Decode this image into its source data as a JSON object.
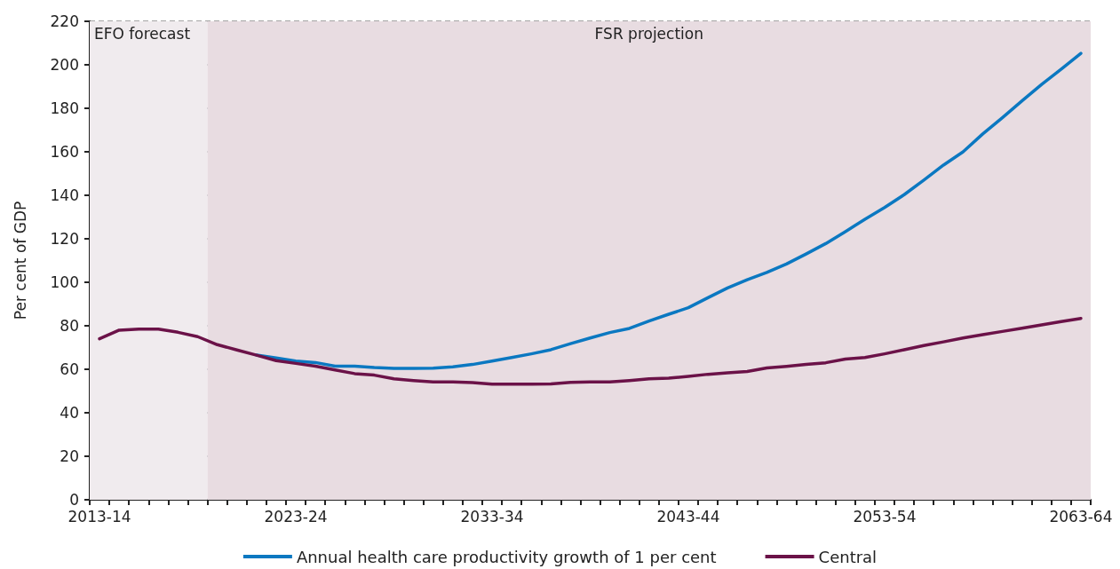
{
  "chart_data": {
    "type": "line",
    "ylabel": "Per cent of GDP",
    "categories": [
      "2013-14",
      null,
      null,
      null,
      null,
      null,
      null,
      null,
      null,
      null,
      "2023-24",
      null,
      null,
      null,
      null,
      null,
      null,
      null,
      null,
      null,
      "2033-34",
      null,
      null,
      null,
      null,
      null,
      null,
      null,
      null,
      null,
      "2043-44",
      null,
      null,
      null,
      null,
      null,
      null,
      null,
      null,
      null,
      "2053-54",
      null,
      null,
      null,
      null,
      null,
      null,
      null,
      null,
      null,
      "2063-64"
    ],
    "series": [
      {
        "name": "Annual health care productivity growth of 1 per cent",
        "color": "#0b78c1",
        "values": [
          null,
          null,
          null,
          null,
          null,
          null,
          null,
          null,
          66.5,
          65.2,
          63.8,
          63.1,
          61.4,
          61.4,
          60.8,
          60.4,
          60.4,
          60.5,
          61.1,
          62.2,
          63.8,
          65.4,
          67.1,
          69,
          71.8,
          74.4,
          76.9,
          78.8,
          82.2,
          85.3,
          88.3,
          92.9,
          97.4,
          101.2,
          104.5,
          108.4,
          113,
          117.8,
          123.3,
          129,
          134.4,
          140.3,
          147,
          153.9,
          160,
          168.2,
          175.7,
          183.4,
          191,
          198,
          205.3
        ]
      },
      {
        "name": "Central",
        "color": "#6b1248",
        "values": [
          74,
          78,
          78.5,
          78.5,
          77,
          75,
          71.3,
          68.9,
          66.5,
          64,
          62.7,
          61.4,
          59.7,
          58,
          57.3,
          55.6,
          54.8,
          54.2,
          54.2,
          53.9,
          53.2,
          53.2,
          53.2,
          53.3,
          54,
          54.2,
          54.2,
          54.8,
          55.6,
          55.9,
          56.7,
          57.7,
          58.4,
          59,
          60.6,
          61.3,
          62.2,
          63,
          64.7,
          65.4,
          67.1,
          69,
          70.9,
          72.6,
          74.4,
          75.9,
          77.4,
          78.9,
          80.4,
          81.9,
          83.4
        ]
      }
    ],
    "ylim": [
      0,
      220
    ],
    "yticks": [
      0,
      20,
      40,
      60,
      80,
      100,
      120,
      140,
      160,
      180,
      200,
      220
    ],
    "annotations": [
      "EFO forecast",
      "FSR projection"
    ],
    "grid": "y",
    "legend": "bottom",
    "marker": "none",
    "line_style": "solid"
  }
}
